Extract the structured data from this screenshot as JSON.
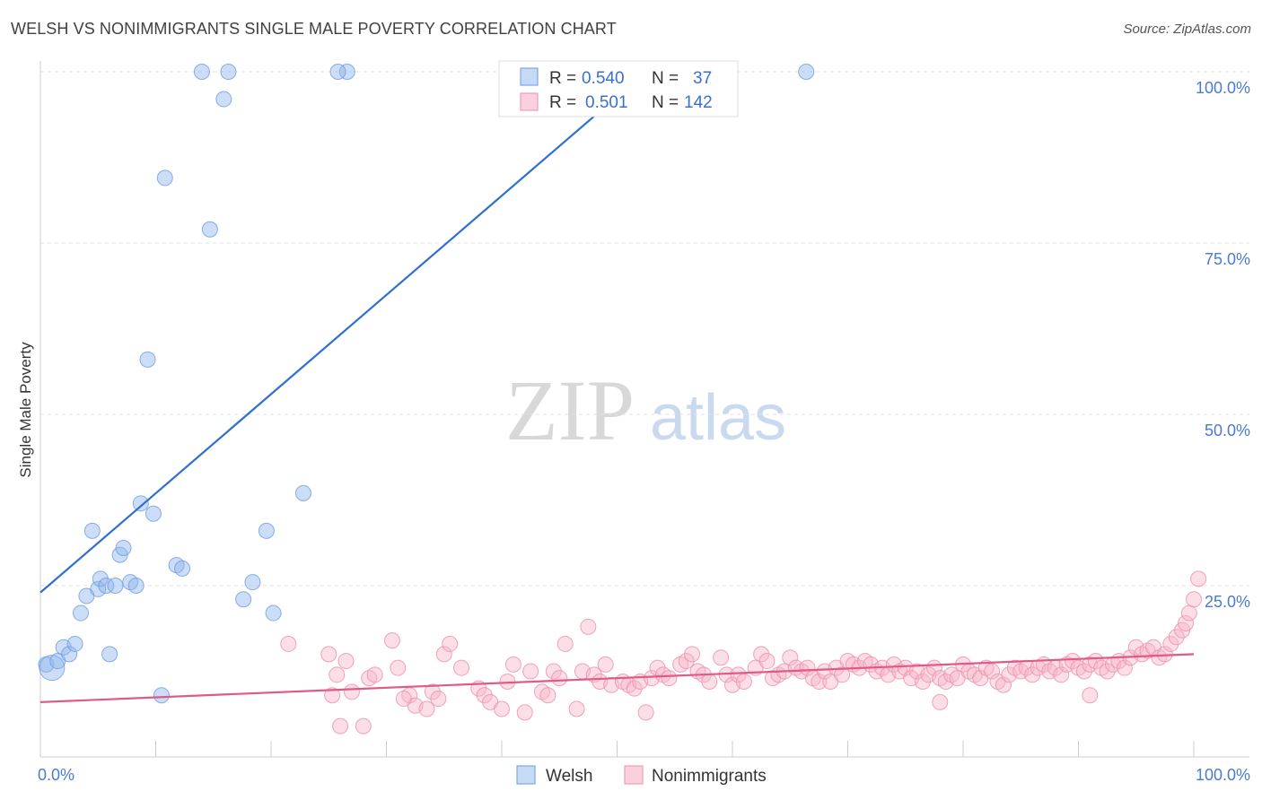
{
  "title": "WELSH VS NONIMMIGRANTS SINGLE MALE POVERTY CORRELATION CHART",
  "source": "Source: ZipAtlas.com",
  "watermark": {
    "zip": "ZIP",
    "atlas": "atlas"
  },
  "chart_data": {
    "type": "scatter",
    "ylabel": "Single Male Poverty",
    "xlabel": "",
    "xlim": [
      0,
      100
    ],
    "ylim": [
      0,
      100
    ],
    "x_tick_labels": {
      "left": "0.0%",
      "right": "100.0%"
    },
    "y_ticks": [
      {
        "value": 25,
        "label": "25.0%"
      },
      {
        "value": 50,
        "label": "50.0%"
      },
      {
        "value": 75,
        "label": "75.0%"
      },
      {
        "value": 100,
        "label": "100.0%"
      }
    ],
    "legend": {
      "rows": [
        {
          "series": "Welsh",
          "r_label": "R = ",
          "r_value": "0.540",
          "n_label": "N = ",
          "n_value": "37"
        },
        {
          "series": "Nonimmigrants",
          "r_label": "R = ",
          "r_value": "0.501",
          "n_label": "N = ",
          "n_value": "142"
        }
      ]
    },
    "series": [
      {
        "name": "Welsh",
        "color": "#8fb6ee",
        "stroke": "#6f9be0",
        "line_color": "#2e6fd0",
        "trend": {
          "x0": 0,
          "y0": 24,
          "x1": 52.5,
          "y1": 100
        },
        "points": [
          [
            0.5,
            13.5
          ],
          [
            1,
            13
          ],
          [
            1.5,
            14
          ],
          [
            2,
            16
          ],
          [
            2.5,
            15
          ],
          [
            3,
            16.5
          ],
          [
            3.5,
            21
          ],
          [
            4,
            23.5
          ],
          [
            4.5,
            33
          ],
          [
            5,
            24.5
          ],
          [
            5.2,
            26
          ],
          [
            5.7,
            25
          ],
          [
            6,
            15
          ],
          [
            6.5,
            25
          ],
          [
            6.9,
            29.5
          ],
          [
            7.2,
            30.5
          ],
          [
            7.8,
            25.5
          ],
          [
            8.3,
            25
          ],
          [
            8.7,
            37
          ],
          [
            9.3,
            58
          ],
          [
            9.8,
            35.5
          ],
          [
            10.5,
            9
          ],
          [
            10.8,
            84.5
          ],
          [
            11.8,
            28
          ],
          [
            12.3,
            27.5
          ],
          [
            14,
            100
          ],
          [
            14.7,
            77
          ],
          [
            15.9,
            96
          ],
          [
            16.3,
            100
          ],
          [
            17.6,
            23
          ],
          [
            18.4,
            25.5
          ],
          [
            19.6,
            33
          ],
          [
            20.2,
            21
          ],
          [
            22.8,
            38.5
          ],
          [
            26.6,
            100
          ],
          [
            66.4,
            100
          ],
          [
            25.8,
            100
          ]
        ]
      },
      {
        "name": "Nonimmigrants",
        "color": "#f7b6c8",
        "stroke": "#ec8fab",
        "line_color": "#e05a88",
        "trend": {
          "x0": 0,
          "y0": 8,
          "x1": 100,
          "y1": 15
        },
        "points": [
          [
            21.5,
            16.5
          ],
          [
            25,
            15
          ],
          [
            25.3,
            9
          ],
          [
            25.7,
            12
          ],
          [
            26,
            4.5
          ],
          [
            26.5,
            14
          ],
          [
            27,
            9.5
          ],
          [
            28,
            4.5
          ],
          [
            28.5,
            11.5
          ],
          [
            29,
            12
          ],
          [
            30.5,
            17
          ],
          [
            31,
            13
          ],
          [
            32,
            9
          ],
          [
            32.5,
            7.5
          ],
          [
            33.5,
            7
          ],
          [
            34,
            9.5
          ],
          [
            34.5,
            8.5
          ],
          [
            35,
            15
          ],
          [
            35.5,
            16.5
          ],
          [
            36.5,
            13
          ],
          [
            38,
            10
          ],
          [
            38.5,
            9
          ],
          [
            39,
            8
          ],
          [
            40,
            7
          ],
          [
            40.5,
            11
          ],
          [
            41,
            13.5
          ],
          [
            42,
            6.5
          ],
          [
            42.5,
            12.5
          ],
          [
            43.5,
            9.5
          ],
          [
            44,
            9
          ],
          [
            44.5,
            12.5
          ],
          [
            45,
            11.5
          ],
          [
            45.5,
            16.5
          ],
          [
            46.5,
            7
          ],
          [
            47,
            12.5
          ],
          [
            47.5,
            19
          ],
          [
            48,
            12
          ],
          [
            48.5,
            11
          ],
          [
            49,
            13.5
          ],
          [
            49.5,
            10.5
          ],
          [
            50.5,
            11
          ],
          [
            51,
            10.5
          ],
          [
            51.5,
            10
          ],
          [
            52,
            11
          ],
          [
            52.5,
            6.5
          ],
          [
            53,
            11.5
          ],
          [
            53.5,
            13
          ],
          [
            54,
            12
          ],
          [
            54.5,
            11.5
          ],
          [
            55.5,
            13.5
          ],
          [
            56,
            14
          ],
          [
            56.5,
            15
          ],
          [
            57,
            12.5
          ],
          [
            57.5,
            12
          ],
          [
            58,
            11
          ],
          [
            59,
            14.5
          ],
          [
            59.5,
            12
          ],
          [
            60,
            10.5
          ],
          [
            60.5,
            12
          ],
          [
            61,
            11
          ],
          [
            62,
            13
          ],
          [
            62.5,
            15
          ],
          [
            63,
            14
          ],
          [
            63.5,
            11.5
          ],
          [
            64,
            12
          ],
          [
            64.5,
            12.5
          ],
          [
            65,
            14.5
          ],
          [
            65.5,
            13
          ],
          [
            66,
            12.5
          ],
          [
            66.5,
            13
          ],
          [
            67,
            11.5
          ],
          [
            67.5,
            11
          ],
          [
            68,
            12.5
          ],
          [
            68.5,
            11
          ],
          [
            69,
            13
          ],
          [
            69.5,
            12
          ],
          [
            70,
            14
          ],
          [
            70.5,
            13.5
          ],
          [
            71,
            13
          ],
          [
            71.5,
            14
          ],
          [
            72,
            13.5
          ],
          [
            72.5,
            12.5
          ],
          [
            73,
            13
          ],
          [
            73.5,
            12
          ],
          [
            74,
            13.5
          ],
          [
            74.5,
            12.5
          ],
          [
            75,
            13
          ],
          [
            75.5,
            11.5
          ],
          [
            76,
            12.5
          ],
          [
            76.5,
            11
          ],
          [
            77,
            12
          ],
          [
            77.5,
            13
          ],
          [
            78,
            11.5
          ],
          [
            78.5,
            11
          ],
          [
            79,
            12
          ],
          [
            79.5,
            11.5
          ],
          [
            80,
            13.5
          ],
          [
            80.5,
            12.5
          ],
          [
            81,
            12
          ],
          [
            81.5,
            11.5
          ],
          [
            82,
            13
          ],
          [
            82.5,
            12.5
          ],
          [
            83,
            11
          ],
          [
            83.5,
            10.5
          ],
          [
            84,
            12
          ],
          [
            84.5,
            13
          ],
          [
            85,
            12.5
          ],
          [
            85.5,
            13
          ],
          [
            86,
            12
          ],
          [
            86.5,
            13
          ],
          [
            87,
            13.5
          ],
          [
            87.5,
            12.5
          ],
          [
            88,
            13
          ],
          [
            88.5,
            12
          ],
          [
            89,
            13.5
          ],
          [
            89.5,
            14
          ],
          [
            90,
            13
          ],
          [
            90.5,
            12.5
          ],
          [
            91,
            13.5
          ],
          [
            91.5,
            14
          ],
          [
            92,
            13
          ],
          [
            92.5,
            12.5
          ],
          [
            93,
            13.5
          ],
          [
            93.5,
            14
          ],
          [
            94,
            13
          ],
          [
            94.5,
            14.5
          ],
          [
            95,
            16
          ],
          [
            95.5,
            15
          ],
          [
            96,
            15.5
          ],
          [
            96.5,
            16
          ],
          [
            97,
            14.5
          ],
          [
            97.5,
            15
          ],
          [
            98,
            16.5
          ],
          [
            98.5,
            17.5
          ],
          [
            99,
            18.5
          ],
          [
            99.3,
            19.5
          ],
          [
            99.6,
            21
          ],
          [
            100,
            23
          ],
          [
            100.4,
            26
          ],
          [
            91,
            9
          ],
          [
            78,
            8
          ],
          [
            31.5,
            8.5
          ]
        ]
      }
    ]
  },
  "bottom_legend": [
    "Welsh",
    "Nonimmigrants"
  ]
}
